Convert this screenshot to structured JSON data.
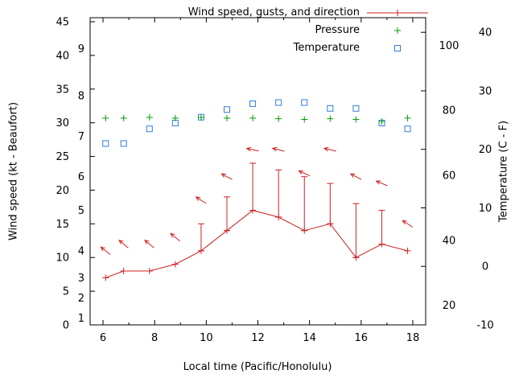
{
  "chart_data": {
    "type": "line",
    "title": "",
    "x_axis": {
      "label": "Local time (Pacific/Honolulu)",
      "range": [
        5.5,
        18.5
      ],
      "ticks": [
        6,
        8,
        10,
        12,
        14,
        16,
        18
      ],
      "minor_ticks": [
        7,
        9,
        11,
        13,
        15,
        17
      ]
    },
    "y_left": {
      "label": "Wind speed (kt - Beaufort)",
      "range": [
        0,
        45.6
      ],
      "ticks": [
        0,
        5,
        10,
        15,
        20,
        25,
        30,
        35,
        40,
        45
      ],
      "beaufort_scale": [
        {
          "bft": "1",
          "kt": 1
        },
        {
          "bft": "2",
          "kt": 4
        },
        {
          "bft": "3",
          "kt": 7
        },
        {
          "bft": "4",
          "kt": 11
        },
        {
          "bft": "5",
          "kt": 17
        },
        {
          "bft": "6",
          "kt": 22
        },
        {
          "bft": "7",
          "kt": 28
        },
        {
          "bft": "8",
          "kt": 34
        },
        {
          "bft": "9",
          "kt": 41
        }
      ]
    },
    "y_right": {
      "label": "Temperature (C - F)",
      "range": [
        -10,
        42.5
      ],
      "ticks": [
        -10,
        0,
        10,
        20,
        30,
        40
      ],
      "fahrenheit_scale": [
        20,
        40,
        60,
        80,
        100
      ]
    },
    "legend": {
      "position": "top-right-inside",
      "items": [
        {
          "label": "Wind speed, gusts, and direction",
          "series": "wind"
        },
        {
          "label": "Pressure",
          "series": "pressure"
        },
        {
          "label": "Temperature",
          "series": "temperature"
        }
      ]
    },
    "grid": false,
    "series": {
      "wind": {
        "name": "Wind speed, gusts, and direction",
        "color": "#cc2222",
        "marker": "plus-with-errorbars-and-arrows",
        "times": [
          6.1,
          6.8,
          7.8,
          8.8,
          9.8,
          10.8,
          11.8,
          12.8,
          13.8,
          14.8,
          15.8,
          16.8,
          17.8
        ],
        "speed_kt": [
          7,
          8,
          8,
          9,
          11,
          14,
          17,
          16,
          14,
          15,
          10,
          12,
          11
        ],
        "gust_kt": [
          7,
          8,
          8,
          9,
          15,
          19,
          24,
          23,
          22,
          21,
          18,
          17,
          11
        ],
        "dir_marker_y_kt": [
          11,
          12,
          12,
          13,
          18.5,
          22,
          26,
          26,
          22.5,
          26,
          22,
          21,
          15
        ],
        "dir_angle_deg": [
          142,
          140,
          140,
          140,
          147,
          152,
          168,
          166,
          156,
          166,
          152,
          157,
          147
        ]
      },
      "pressure": {
        "name": "Pressure",
        "color": "#00a000",
        "marker": "plus",
        "times": [
          6.1,
          6.8,
          7.8,
          8.8,
          9.8,
          10.8,
          11.8,
          12.8,
          13.8,
          14.8,
          15.8,
          16.8,
          17.8
        ],
        "values": [
          30.7,
          30.7,
          30.8,
          30.7,
          30.8,
          30.7,
          30.7,
          30.6,
          30.5,
          30.6,
          30.5,
          30.2,
          30.7
        ]
      },
      "temperature": {
        "name": "Temperature",
        "color": "#2f7ed8",
        "marker": "open-square",
        "times": [
          6.1,
          6.8,
          7.8,
          8.8,
          9.8,
          10.8,
          11.8,
          12.8,
          13.8,
          14.8,
          15.8,
          16.8,
          17.8
        ],
        "values_c": [
          21,
          21,
          23.5,
          24.5,
          25.5,
          26.8,
          27.8,
          28,
          28,
          27,
          27,
          24.5,
          23.5
        ]
      }
    },
    "colors": {
      "wind": "#cc2222",
      "pressure": "#00a000",
      "temperature": "#2f7ed8",
      "axis": "#000000",
      "background": "#ffffff"
    }
  }
}
